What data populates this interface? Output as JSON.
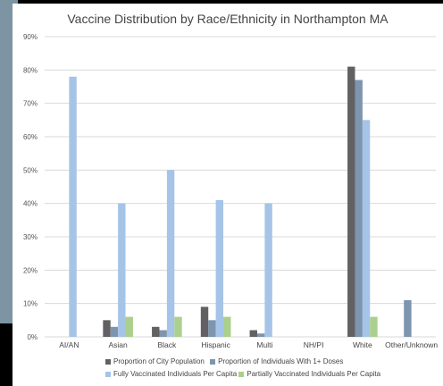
{
  "colors": {
    "city_population": "#626063",
    "one_plus_doses": "#7d95ae",
    "fully_vaccinated": "#a5c4e7",
    "partially_vaccinated": "#abd08d",
    "grid": "#d9d9d9",
    "backdrop_panel": "#7d95a3"
  },
  "chart_data": {
    "type": "bar",
    "title": "Vaccine Distribution by Race/Ethnicity in Northampton MA",
    "xlabel": "",
    "ylabel": "",
    "ylim": [
      0,
      90
    ],
    "yticks": [
      0,
      10,
      20,
      30,
      40,
      50,
      60,
      70,
      80,
      90
    ],
    "ytick_suffix": "%",
    "grid": true,
    "legend_position": "bottom",
    "categories": [
      "AI/AN",
      "Asian",
      "Black",
      "Hispanic",
      "Multi",
      "NH/PI",
      "White",
      "Other/Unknown"
    ],
    "series": [
      {
        "name": "Proportion of City Population",
        "values": [
          null,
          5,
          3,
          9,
          2,
          null,
          81,
          null
        ]
      },
      {
        "name": "Proportion of Individuals With 1+ Doses",
        "values": [
          null,
          3,
          2,
          5,
          1,
          null,
          77,
          11
        ]
      },
      {
        "name": "Fully Vaccinated Individuals Per Capita",
        "values": [
          78,
          40,
          50,
          41,
          40,
          null,
          65,
          null
        ]
      },
      {
        "name": "Partially Vaccinated Individuals Per Capita",
        "values": [
          null,
          6,
          6,
          6,
          null,
          null,
          6,
          null
        ]
      }
    ]
  }
}
